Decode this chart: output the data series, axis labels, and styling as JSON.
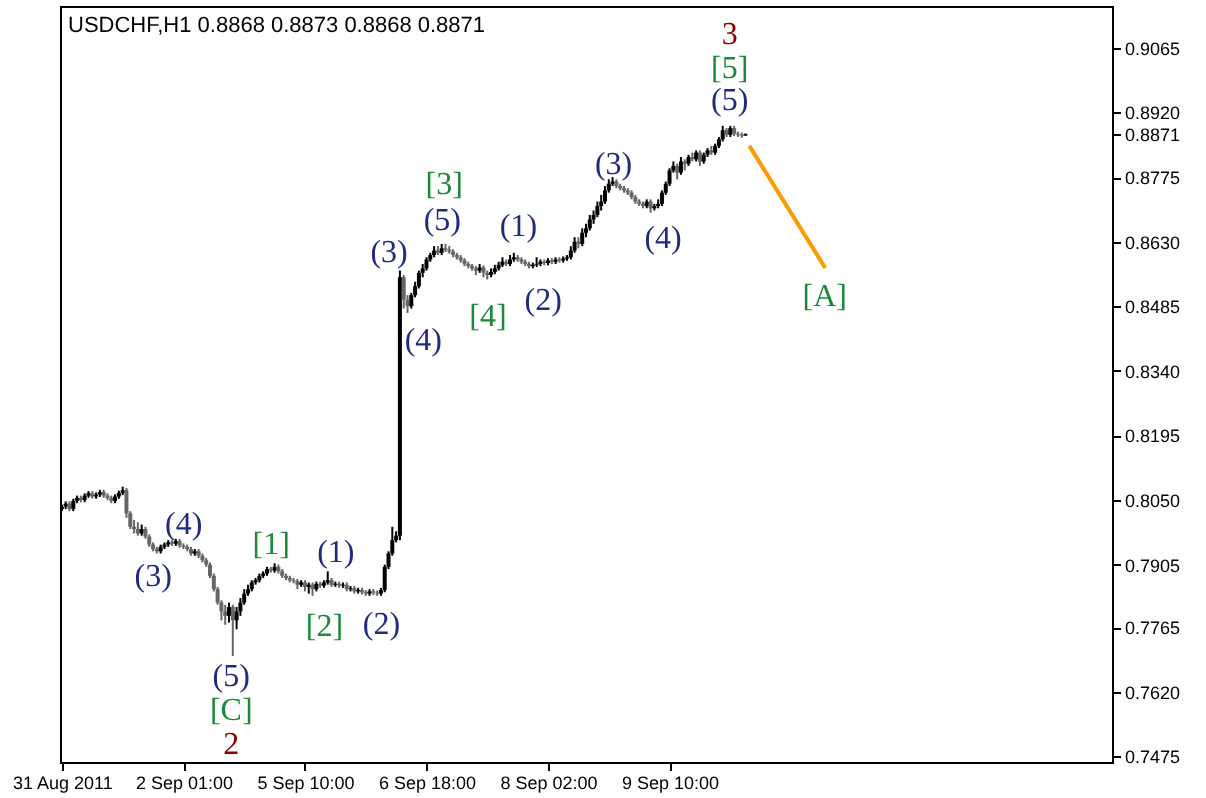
{
  "chart_data": {
    "type": "candlestick",
    "title": "USDCHF,H1  0.8868 0.8873 0.8868 0.8871",
    "categories": [
      "31 Aug 2011",
      null,
      null,
      null,
      null,
      null,
      null,
      null,
      null,
      null,
      null,
      null,
      null,
      null,
      null,
      null,
      null,
      null,
      null,
      null,
      null,
      null,
      null,
      null,
      null,
      null,
      null,
      null,
      null,
      null,
      null,
      null,
      "2 Sep 01:00",
      null,
      null,
      null,
      null,
      null,
      null,
      null,
      null,
      null,
      null,
      null,
      null,
      null,
      null,
      null,
      null,
      null,
      null,
      null,
      null,
      null,
      null,
      null,
      null,
      null,
      null,
      null,
      null,
      null,
      null,
      null,
      "5 Sep 10:00",
      null,
      null,
      null,
      null,
      null,
      null,
      null,
      null,
      null,
      null,
      null,
      null,
      null,
      null,
      null,
      null,
      null,
      null,
      null,
      null,
      null,
      null,
      null,
      null,
      null,
      null,
      null,
      null,
      null,
      null,
      null,
      "6 Sep 18:00",
      null,
      null,
      null,
      null,
      null,
      null,
      null,
      null,
      null,
      null,
      null,
      null,
      null,
      null,
      null,
      null,
      null,
      null,
      null,
      null,
      null,
      null,
      null,
      null,
      null,
      null,
      null,
      null,
      null,
      null,
      null,
      "8 Sep 02:00",
      null,
      null,
      null,
      null,
      null,
      null,
      null,
      null,
      null,
      null,
      null,
      null,
      null,
      null,
      null,
      null,
      null,
      null,
      null,
      null,
      null,
      null,
      null,
      null,
      null,
      null,
      null,
      null,
      null,
      null,
      null,
      "9 Sep 10:00",
      null,
      null,
      null,
      null,
      null,
      null,
      null,
      null,
      null,
      null,
      null,
      null,
      null,
      null,
      null,
      null,
      null,
      null,
      null,
      null,
      null,
      null,
      null,
      null,
      null,
      null,
      null,
      null,
      null,
      null,
      null,
      null,
      null,
      null,
      null,
      null,
      null,
      null,
      null,
      null,
      null,
      null,
      null,
      null,
      null,
      null,
      null,
      null,
      null,
      null,
      null,
      null,
      null,
      null,
      null,
      null,
      null,
      null,
      null,
      null,
      null,
      null,
      null,
      null,
      null,
      null,
      null,
      null,
      null,
      null,
      null,
      null,
      null,
      null,
      null,
      null,
      null,
      null,
      null,
      null,
      null,
      null,
      null,
      null,
      null,
      null,
      null,
      null,
      null,
      null,
      null,
      null,
      null,
      null,
      null,
      null,
      null,
      null,
      null,
      null,
      null,
      null,
      null,
      null,
      null,
      null,
      null,
      null,
      null,
      null,
      null,
      null,
      null,
      null,
      null,
      null
    ],
    "ohlc": [
      [
        0.803,
        0.804,
        0.8025,
        0.8035
      ],
      [
        0.8035,
        0.8047,
        0.803,
        0.8042
      ],
      [
        0.8042,
        0.8047,
        0.8025,
        0.803
      ],
      [
        0.803,
        0.8053,
        0.8025,
        0.8048
      ],
      [
        0.8048,
        0.806,
        0.8043,
        0.8055
      ],
      [
        0.8055,
        0.806,
        0.8045,
        0.805
      ],
      [
        0.805,
        0.8065,
        0.8045,
        0.806
      ],
      [
        0.806,
        0.807,
        0.8055,
        0.8065
      ],
      [
        0.8065,
        0.807,
        0.8053,
        0.8058
      ],
      [
        0.8058,
        0.8067,
        0.8053,
        0.8062
      ],
      [
        0.8062,
        0.8073,
        0.8057,
        0.8068
      ],
      [
        0.8068,
        0.8073,
        0.8055,
        0.806
      ],
      [
        0.806,
        0.8065,
        0.805,
        0.8055
      ],
      [
        0.8055,
        0.806,
        0.8043,
        0.8048
      ],
      [
        0.8048,
        0.8063,
        0.8043,
        0.8058
      ],
      [
        0.8058,
        0.8071,
        0.8053,
        0.8066
      ],
      [
        0.8066,
        0.808,
        0.8061,
        0.8072
      ],
      [
        0.8072,
        0.8077,
        0.801,
        0.802
      ],
      [
        0.802,
        0.8025,
        0.7985,
        0.799
      ],
      [
        0.799,
        0.8005,
        0.7975,
        0.7985
      ],
      [
        0.7985,
        0.8,
        0.797,
        0.7975
      ],
      [
        0.7975,
        0.7995,
        0.797,
        0.7985
      ],
      [
        0.7985,
        0.799,
        0.7963,
        0.7968
      ],
      [
        0.7968,
        0.7973,
        0.7945,
        0.795
      ],
      [
        0.795,
        0.7955,
        0.7935,
        0.794
      ],
      [
        0.794,
        0.7945,
        0.793,
        0.7935
      ],
      [
        0.7935,
        0.795,
        0.793,
        0.7945
      ],
      [
        0.7945,
        0.7955,
        0.794,
        0.795
      ],
      [
        0.795,
        0.796,
        0.7945,
        0.7955
      ],
      [
        0.7955,
        0.796,
        0.7947,
        0.7952
      ],
      [
        0.7952,
        0.7963,
        0.7947,
        0.7958
      ],
      [
        0.7958,
        0.7963,
        0.7943,
        0.7948
      ],
      [
        0.7948,
        0.7953,
        0.794,
        0.7945
      ],
      [
        0.7945,
        0.795,
        0.7935,
        0.794
      ],
      [
        0.794,
        0.7945,
        0.7925,
        0.793
      ],
      [
        0.793,
        0.794,
        0.7925,
        0.7935
      ],
      [
        0.7935,
        0.794,
        0.792,
        0.7925
      ],
      [
        0.7925,
        0.793,
        0.791,
        0.7915
      ],
      [
        0.7915,
        0.792,
        0.79,
        0.7905
      ],
      [
        0.7905,
        0.791,
        0.7875,
        0.788
      ],
      [
        0.788,
        0.7885,
        0.7845,
        0.785
      ],
      [
        0.785,
        0.7855,
        0.7815,
        0.782
      ],
      [
        0.782,
        0.7825,
        0.778,
        0.78
      ],
      [
        0.78,
        0.7815,
        0.777,
        0.779
      ],
      [
        0.779,
        0.782,
        0.7775,
        0.781
      ],
      [
        0.781,
        0.7815,
        0.77,
        0.778
      ],
      [
        0.778,
        0.781,
        0.776,
        0.78
      ],
      [
        0.78,
        0.783,
        0.779,
        0.782
      ],
      [
        0.782,
        0.785,
        0.7815,
        0.784
      ],
      [
        0.784,
        0.786,
        0.7835,
        0.785
      ],
      [
        0.785,
        0.787,
        0.7845,
        0.7865
      ],
      [
        0.7865,
        0.7875,
        0.786,
        0.787
      ],
      [
        0.787,
        0.7885,
        0.7865,
        0.788
      ],
      [
        0.788,
        0.789,
        0.7875,
        0.7885
      ],
      [
        0.7885,
        0.79,
        0.788,
        0.7895
      ],
      [
        0.7895,
        0.79,
        0.7887,
        0.7892
      ],
      [
        0.7892,
        0.7908,
        0.7887,
        0.79
      ],
      [
        0.79,
        0.7905,
        0.7885,
        0.789
      ],
      [
        0.789,
        0.7895,
        0.7875,
        0.788
      ],
      [
        0.788,
        0.7885,
        0.787,
        0.7875
      ],
      [
        0.7875,
        0.788,
        0.7865,
        0.787
      ],
      [
        0.787,
        0.7875,
        0.7863,
        0.7868
      ],
      [
        0.7868,
        0.7873,
        0.785,
        0.786
      ],
      [
        0.786,
        0.787,
        0.7855,
        0.7865
      ],
      [
        0.7865,
        0.787,
        0.7845,
        0.7855
      ],
      [
        0.7855,
        0.7865,
        0.784,
        0.786
      ],
      [
        0.786,
        0.7865,
        0.7835,
        0.785
      ],
      [
        0.785,
        0.7867,
        0.7845,
        0.7862
      ],
      [
        0.7862,
        0.7867,
        0.7853,
        0.7858
      ],
      [
        0.7858,
        0.787,
        0.7853,
        0.7865
      ],
      [
        0.7865,
        0.789,
        0.786,
        0.787
      ],
      [
        0.787,
        0.7875,
        0.7855,
        0.786
      ],
      [
        0.786,
        0.7867,
        0.7855,
        0.7862
      ],
      [
        0.7862,
        0.7867,
        0.7853,
        0.7858
      ],
      [
        0.7858,
        0.7865,
        0.7853,
        0.786
      ],
      [
        0.786,
        0.7865,
        0.7845,
        0.785
      ],
      [
        0.785,
        0.7857,
        0.7845,
        0.7852
      ],
      [
        0.7852,
        0.7857,
        0.784,
        0.7845
      ],
      [
        0.7845,
        0.7853,
        0.784,
        0.7848
      ],
      [
        0.7848,
        0.7853,
        0.7838,
        0.7843
      ],
      [
        0.7843,
        0.7848,
        0.7835,
        0.784
      ],
      [
        0.784,
        0.785,
        0.7835,
        0.7845
      ],
      [
        0.7845,
        0.785,
        0.7837,
        0.7842
      ],
      [
        0.7842,
        0.7847,
        0.7835,
        0.784
      ],
      [
        0.784,
        0.7853,
        0.7835,
        0.7848
      ],
      [
        0.7848,
        0.7905,
        0.7843,
        0.79
      ],
      [
        0.79,
        0.7935,
        0.7895,
        0.793
      ],
      [
        0.793,
        0.799,
        0.7925,
        0.796
      ],
      [
        0.796,
        0.798,
        0.7955,
        0.797
      ],
      [
        0.797,
        0.8565,
        0.796,
        0.855
      ],
      [
        0.855,
        0.8555,
        0.848,
        0.85
      ],
      [
        0.85,
        0.851,
        0.847,
        0.8485
      ],
      [
        0.8485,
        0.8515,
        0.848,
        0.851
      ],
      [
        0.851,
        0.854,
        0.8505,
        0.853
      ],
      [
        0.853,
        0.8565,
        0.8525,
        0.856
      ],
      [
        0.856,
        0.858,
        0.855,
        0.857
      ],
      [
        0.857,
        0.8595,
        0.8565,
        0.859
      ],
      [
        0.859,
        0.8605,
        0.8585,
        0.86
      ],
      [
        0.86,
        0.862,
        0.8595,
        0.861
      ],
      [
        0.861,
        0.862,
        0.86,
        0.8605
      ],
      [
        0.8605,
        0.8625,
        0.86,
        0.8615
      ],
      [
        0.8615,
        0.8625,
        0.8607,
        0.8612
      ],
      [
        0.8612,
        0.862,
        0.8603,
        0.8608
      ],
      [
        0.8608,
        0.8613,
        0.8595,
        0.86
      ],
      [
        0.86,
        0.8605,
        0.859,
        0.8595
      ],
      [
        0.8595,
        0.86,
        0.8583,
        0.8588
      ],
      [
        0.8588,
        0.8593,
        0.8575,
        0.858
      ],
      [
        0.858,
        0.8585,
        0.857,
        0.8575
      ],
      [
        0.8575,
        0.858,
        0.8565,
        0.857
      ],
      [
        0.857,
        0.8575,
        0.8555,
        0.8565
      ],
      [
        0.8565,
        0.858,
        0.856,
        0.8572
      ],
      [
        0.8572,
        0.8577,
        0.855,
        0.856
      ],
      [
        0.856,
        0.8565,
        0.8545,
        0.8555
      ],
      [
        0.8555,
        0.857,
        0.855,
        0.8562
      ],
      [
        0.8562,
        0.8578,
        0.8557,
        0.857
      ],
      [
        0.857,
        0.8585,
        0.8565,
        0.8578
      ],
      [
        0.8578,
        0.8595,
        0.8573,
        0.8585
      ],
      [
        0.8585,
        0.859,
        0.8575,
        0.858
      ],
      [
        0.858,
        0.86,
        0.8575,
        0.859
      ],
      [
        0.859,
        0.8605,
        0.8585,
        0.8595
      ],
      [
        0.8595,
        0.86,
        0.8585,
        0.859
      ],
      [
        0.859,
        0.8595,
        0.858,
        0.8585
      ],
      [
        0.8585,
        0.859,
        0.8575,
        0.858
      ],
      [
        0.858,
        0.8585,
        0.857,
        0.8575
      ],
      [
        0.8575,
        0.8583,
        0.857,
        0.8578
      ],
      [
        0.8578,
        0.8595,
        0.8573,
        0.858
      ],
      [
        0.858,
        0.859,
        0.8575,
        0.8585
      ],
      [
        0.8585,
        0.859,
        0.8577,
        0.8582
      ],
      [
        0.8582,
        0.8593,
        0.8577,
        0.8588
      ],
      [
        0.8588,
        0.8593,
        0.858,
        0.8585
      ],
      [
        0.8585,
        0.8595,
        0.858,
        0.859
      ],
      [
        0.859,
        0.8595,
        0.8583,
        0.8588
      ],
      [
        0.8588,
        0.8597,
        0.8583,
        0.8592
      ],
      [
        0.8592,
        0.86,
        0.8587,
        0.8595
      ],
      [
        0.8595,
        0.862,
        0.859,
        0.861
      ],
      [
        0.861,
        0.864,
        0.8605,
        0.863
      ],
      [
        0.863,
        0.864,
        0.8615,
        0.8625
      ],
      [
        0.8625,
        0.866,
        0.862,
        0.865
      ],
      [
        0.865,
        0.867,
        0.864,
        0.866
      ],
      [
        0.866,
        0.869,
        0.8655,
        0.868
      ],
      [
        0.868,
        0.87,
        0.867,
        0.869
      ],
      [
        0.869,
        0.872,
        0.8685,
        0.871
      ],
      [
        0.871,
        0.8735,
        0.87,
        0.872
      ],
      [
        0.872,
        0.8755,
        0.8715,
        0.8745
      ],
      [
        0.8745,
        0.877,
        0.874,
        0.876
      ],
      [
        0.876,
        0.8775,
        0.8755,
        0.8765
      ],
      [
        0.8765,
        0.877,
        0.875,
        0.8755
      ],
      [
        0.8755,
        0.876,
        0.8745,
        0.875
      ],
      [
        0.875,
        0.8755,
        0.874,
        0.8745
      ],
      [
        0.8745,
        0.875,
        0.8735,
        0.874
      ],
      [
        0.874,
        0.8745,
        0.8725,
        0.873
      ],
      [
        0.873,
        0.8735,
        0.8715,
        0.872
      ],
      [
        0.872,
        0.8725,
        0.871,
        0.8715
      ],
      [
        0.8715,
        0.872,
        0.8705,
        0.871
      ],
      [
        0.871,
        0.8725,
        0.8705,
        0.872
      ],
      [
        0.872,
        0.8725,
        0.8695,
        0.8705
      ],
      [
        0.8705,
        0.8715,
        0.87,
        0.871
      ],
      [
        0.871,
        0.8725,
        0.8705,
        0.8715
      ],
      [
        0.8715,
        0.8745,
        0.871,
        0.874
      ],
      [
        0.874,
        0.8765,
        0.8735,
        0.876
      ],
      [
        0.876,
        0.8795,
        0.8755,
        0.879
      ],
      [
        0.879,
        0.881,
        0.8785,
        0.88
      ],
      [
        0.88,
        0.8805,
        0.877,
        0.8785
      ],
      [
        0.8785,
        0.882,
        0.878,
        0.881
      ],
      [
        0.881,
        0.8815,
        0.879,
        0.8805
      ],
      [
        0.8805,
        0.8825,
        0.88,
        0.882
      ],
      [
        0.882,
        0.883,
        0.881,
        0.8815
      ],
      [
        0.8815,
        0.8835,
        0.881,
        0.883
      ],
      [
        0.883,
        0.8835,
        0.88,
        0.881
      ],
      [
        0.881,
        0.883,
        0.8805,
        0.8825
      ],
      [
        0.8825,
        0.884,
        0.882,
        0.8835
      ],
      [
        0.8835,
        0.8845,
        0.8825,
        0.883
      ],
      [
        0.883,
        0.885,
        0.8825,
        0.8845
      ],
      [
        0.8845,
        0.8865,
        0.884,
        0.886
      ],
      [
        0.886,
        0.889,
        0.8855,
        0.888
      ],
      [
        0.888,
        0.8885,
        0.8865,
        0.887
      ],
      [
        0.887,
        0.889,
        0.8865,
        0.8885
      ],
      [
        0.8885,
        0.889,
        0.8867,
        0.8872
      ],
      [
        0.8872,
        0.8877,
        0.8865,
        0.887
      ],
      [
        0.887,
        0.8875,
        0.8863,
        0.8868
      ],
      [
        0.8868,
        0.8873,
        0.8868,
        0.8871
      ],
      null,
      null,
      null,
      null,
      null,
      null,
      null,
      null,
      null,
      null,
      null,
      null,
      null,
      null,
      null,
      null,
      null,
      null,
      null,
      null,
      null,
      null,
      null,
      null,
      null,
      null,
      null,
      null,
      null,
      null,
      null,
      null,
      null,
      null,
      null,
      null,
      null,
      null,
      null,
      null,
      null,
      null,
      null,
      null,
      null,
      null,
      null,
      null,
      null,
      null,
      null,
      null,
      null,
      null,
      null,
      null,
      null,
      null,
      null,
      null,
      null,
      null,
      null,
      null,
      null,
      null,
      null,
      null,
      null,
      null,
      null,
      null,
      null,
      null,
      null,
      null,
      null,
      null,
      null,
      null,
      null,
      null,
      null,
      null,
      null,
      null,
      null,
      null,
      null,
      null,
      null,
      null,
      null,
      null,
      null,
      null
    ],
    "series": [
      {
        "type": "line",
        "color": "#ff9900",
        "values": [
          null,
          null,
          null,
          null,
          null,
          null,
          null,
          null,
          null,
          null,
          null,
          null,
          null,
          null,
          null,
          null,
          null,
          null,
          null,
          null,
          null,
          null,
          null,
          null,
          null,
          null,
          null,
          null,
          null,
          null,
          null,
          null,
          null,
          null,
          null,
          null,
          null,
          null,
          null,
          null,
          null,
          null,
          null,
          null,
          null,
          null,
          null,
          null,
          null,
          null,
          null,
          null,
          null,
          null,
          null,
          null,
          null,
          null,
          null,
          null,
          null,
          null,
          null,
          null,
          null,
          null,
          null,
          null,
          null,
          null,
          null,
          null,
          null,
          null,
          null,
          null,
          null,
          null,
          null,
          null,
          null,
          null,
          null,
          null,
          null,
          null,
          null,
          null,
          null,
          null,
          null,
          null,
          null,
          null,
          null,
          null,
          null,
          null,
          null,
          null,
          null,
          null,
          null,
          null,
          null,
          null,
          null,
          null,
          null,
          null,
          null,
          null,
          null,
          null,
          null,
          null,
          null,
          null,
          null,
          null,
          null,
          null,
          null,
          null,
          null,
          null,
          null,
          null,
          null,
          null,
          null,
          null,
          null,
          null,
          null,
          null,
          null,
          null,
          null,
          null,
          null,
          null,
          null,
          null,
          null,
          null,
          null,
          null,
          null,
          null,
          null,
          null,
          null,
          null,
          null,
          null,
          null,
          null,
          null,
          null,
          null,
          null,
          null,
          null,
          null,
          null,
          null,
          null,
          null,
          null,
          null,
          null,
          null,
          null,
          null,
          null,
          null,
          null,
          null,
          null,
          null,
          0.8845,
          null,
          null,
          null,
          null,
          null,
          null,
          null,
          null,
          null,
          null,
          null,
          null,
          null,
          null,
          null,
          null,
          null,
          null,
          null,
          0.8571,
          null,
          null,
          null,
          null,
          null,
          null,
          null,
          null,
          null,
          null,
          null,
          null,
          null,
          null,
          null,
          null,
          null,
          null,
          null,
          null,
          null,
          null,
          null,
          null,
          null,
          null,
          null,
          null,
          null,
          null,
          null,
          null,
          null,
          null,
          null,
          null,
          null,
          null,
          null,
          null,
          null,
          null,
          null,
          null,
          null,
          null,
          null,
          null,
          null,
          null,
          null,
          null,
          null,
          null,
          null,
          null,
          null,
          null,
          null,
          null,
          null,
          null,
          null,
          null,
          null,
          null,
          null,
          null,
          null,
          null,
          null,
          null,
          null,
          null,
          null
        ]
      }
    ],
    "ylim": [
      0.7462,
      0.9159
    ],
    "yticks": [
      0.9065,
      {
        "value": 0.892,
        "label": "0.8920"
      },
      0.8871,
      0.8775,
      {
        "value": 0.863,
        "label": "0.8630"
      },
      0.8485,
      {
        "value": 0.834,
        "label": "0.8340"
      },
      0.8195,
      {
        "value": 0.805,
        "label": "0.8050"
      },
      0.7905,
      0.7765,
      {
        "value": 0.762,
        "label": "0.7620"
      },
      0.7475
    ],
    "annotations": [
      "(3)",
      "(4)",
      "(5)",
      "[C]",
      "2",
      "[1]",
      "(1)",
      "[2]",
      "(2)",
      "(3)",
      "(4)",
      "[3]",
      "(5)",
      "[4]",
      "(1)",
      "(2)",
      "(3)",
      "(4)",
      "(5)",
      "[5]",
      "3",
      "[A]"
    ]
  }
}
